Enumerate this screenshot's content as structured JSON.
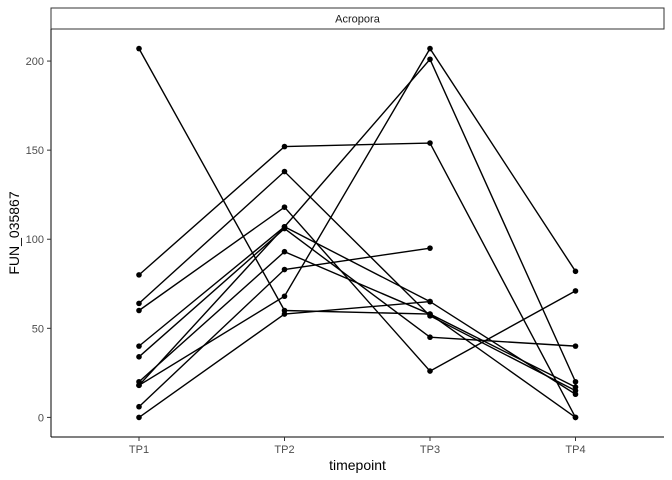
{
  "chart_data": {
    "type": "line",
    "facet": "Acropora",
    "xlabel": "timepoint",
    "ylabel": "FUN_035867",
    "categories": [
      "TP1",
      "TP2",
      "TP3",
      "TP4"
    ],
    "yticks": [
      0,
      50,
      100,
      150,
      200
    ],
    "ylim": [
      -11,
      218
    ],
    "grid": false,
    "colors": {
      "line": "#000000",
      "point": "#000000",
      "axis": "#000000",
      "tick_label": "#4d4d4d"
    },
    "series": [
      {
        "values": [
          207,
          60,
          58,
          0
        ]
      },
      {
        "values": [
          80,
          152,
          154,
          0
        ]
      },
      {
        "values": [
          64,
          138,
          57,
          15
        ]
      },
      {
        "values": [
          60,
          118,
          26,
          71
        ]
      },
      {
        "values": [
          40,
          107,
          65,
          13
        ]
      },
      {
        "values": [
          34,
          106,
          45,
          40
        ]
      },
      {
        "values": [
          20,
          93,
          58,
          17
        ]
      },
      {
        "values": [
          18,
          68,
          207,
          82
        ]
      },
      {
        "values": [
          6,
          83,
          95,
          null
        ]
      },
      {
        "values": [
          0,
          58,
          65,
          null
        ]
      },
      {
        "values": [
          18,
          107,
          201,
          20
        ]
      }
    ]
  }
}
